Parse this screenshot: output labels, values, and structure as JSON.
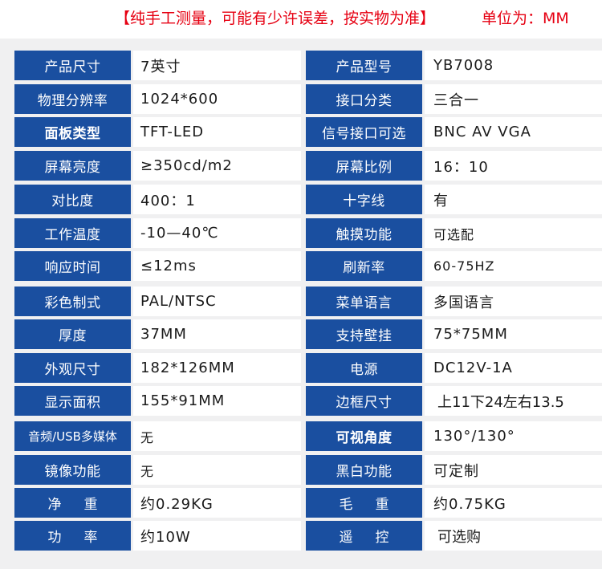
{
  "header": {
    "notice": "【纯手工测量，可能有少许误差，按实物为准】",
    "unit": "单位为：MM"
  },
  "specs": [
    {
      "l1": "产品尺寸",
      "v1": "7英寸",
      "l2": "产品型号",
      "v2": "YB7008"
    },
    {
      "l1": "物理分辨率",
      "v1": "1024*600",
      "l2": "接口分类",
      "v2": "三合一"
    },
    {
      "l1": "面板类型",
      "v1": "TFT-LED",
      "l2": "信号接口可选",
      "v2": "BNC AV VGA"
    },
    {
      "l1": "屏幕亮度",
      "v1": "≥350cd/m2",
      "l2": "屏幕比例",
      "v2": "16：10"
    },
    {
      "l1": "对比度",
      "v1": "400：1",
      "l2": "十字线",
      "v2": "有"
    },
    {
      "l1": "工作温度",
      "v1": "-10—40℃",
      "l2": "触摸功能",
      "v2": "可选配"
    },
    {
      "l1": "响应时间",
      "v1": "≤12ms",
      "l2": "刷新率",
      "v2": "60-75HZ"
    },
    {
      "l1": "彩色制式",
      "v1": "PAL/NTSC",
      "l2": "菜单语言",
      "v2": "多国语言"
    },
    {
      "l1": "厚度",
      "v1": "37MM",
      "l2": "支持壁挂",
      "v2": "75*75MM"
    },
    {
      "l1": "外观尺寸",
      "v1": "182*126MM",
      "l2": "电源",
      "v2": "DC12V-1A"
    },
    {
      "l1": "显示面积",
      "v1": "155*91MM",
      "l2": "边框尺寸",
      "v2": "上11下24左右13.5"
    },
    {
      "l1": "音频/USB多媒体",
      "v1": "无",
      "l2": "可视角度",
      "v2": "130°/130°"
    },
    {
      "l1": "镜像功能",
      "v1": "无",
      "l2": "黑白功能",
      "v2": "可定制"
    },
    {
      "l1": "净重",
      "v1": "约0.29KG",
      "l2": "毛重",
      "v2": "约0.75KG"
    },
    {
      "l1": "功率",
      "v1": "约10W",
      "l2": "遥控",
      "v2": "可选购"
    }
  ]
}
